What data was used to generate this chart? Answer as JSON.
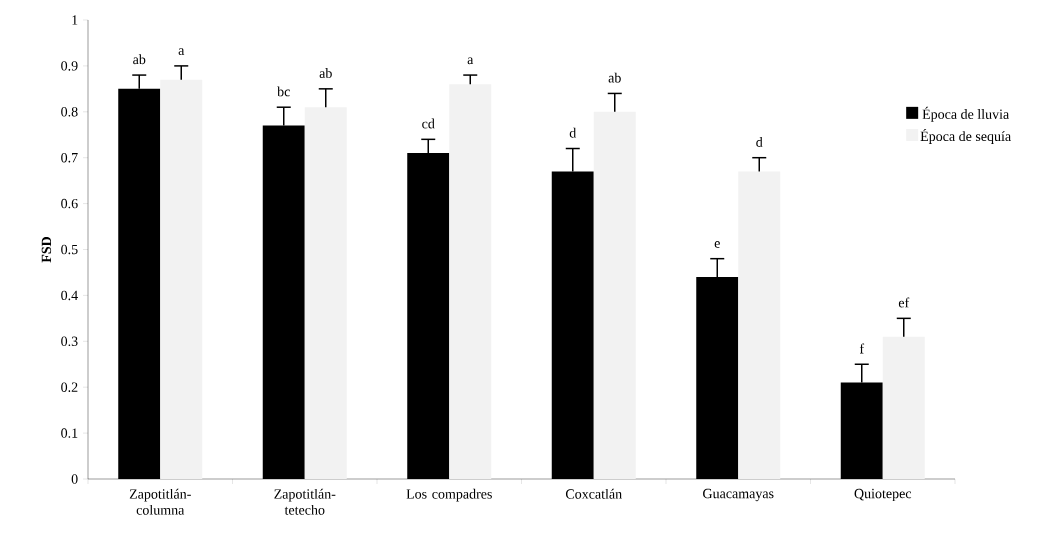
{
  "chart_data": {
    "type": "bar",
    "ylabel": "FSD",
    "categories": [
      "Zapotitlán-columna",
      "Zapotitlán-tetecho",
      "Los compadres",
      "Coxcatlán",
      "Guacamayas",
      "Quiotepec"
    ],
    "series": [
      {
        "name": "Época de lluvia",
        "color": "#000000",
        "values": [
          0.85,
          0.77,
          0.71,
          0.67,
          0.44,
          0.21
        ],
        "errors": [
          [
            0.85,
            0.88
          ],
          [
            0.77,
            0.81
          ],
          [
            0.71,
            0.74
          ],
          [
            0.67,
            0.72
          ],
          [
            0.44,
            0.48
          ],
          [
            0.21,
            0.25
          ]
        ],
        "value_labels": [
          "ab",
          "bc",
          "cd",
          "d",
          "e",
          "f"
        ]
      },
      {
        "name": "Época de sequía",
        "color": "#f2f2f2",
        "values": [
          0.87,
          0.81,
          0.86,
          0.8,
          0.67,
          0.31
        ],
        "errors": [
          [
            0.87,
            0.9
          ],
          [
            0.81,
            0.85
          ],
          [
            0.86,
            0.88
          ],
          [
            0.8,
            0.84
          ],
          [
            0.67,
            0.7
          ],
          [
            0.31,
            0.35
          ]
        ],
        "value_labels": [
          "a",
          "ab",
          "a",
          "ab",
          "d",
          "ef"
        ]
      }
    ],
    "ylim": [
      0,
      1
    ],
    "yticks": [
      0,
      0.1,
      0.2,
      0.3,
      0.4,
      0.5,
      0.6,
      0.7,
      0.8,
      0.9,
      1
    ],
    "legend": "right",
    "grid": false
  }
}
